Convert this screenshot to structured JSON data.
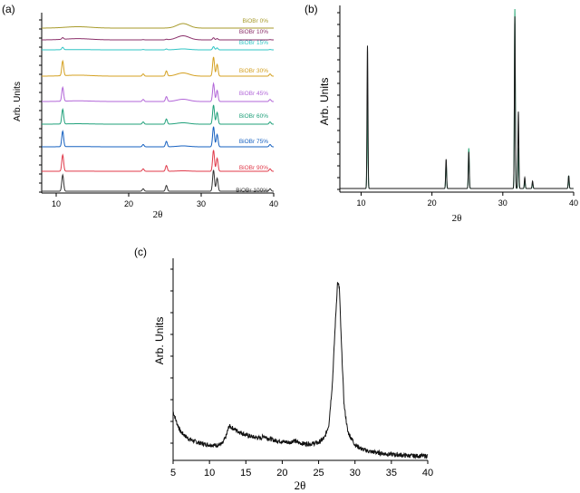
{
  "chart_data": [
    {
      "type": "line",
      "panel_label": "(a)",
      "xlabel": "2θ",
      "ylabel": "Arb. Units",
      "xlim": [
        8,
        40
      ],
      "xticks": [
        10,
        20,
        30,
        40
      ],
      "series": [
        {
          "name": "BiOBr 0%",
          "color": "#a79a2a",
          "bragg_scale": 0.0,
          "amorphous_scale": 1.0
        },
        {
          "name": "BiOBr 10%",
          "color": "#8a2f6a",
          "bragg_scale": 0.1,
          "amorphous_scale": 0.9
        },
        {
          "name": "BiOBr 15%",
          "color": "#2fc4c4",
          "bragg_scale": 0.15,
          "amorphous_scale": 0.2
        },
        {
          "name": "BiOBr 30%",
          "color": "#d4a020",
          "bragg_scale": 0.9,
          "amorphous_scale": 0.7
        },
        {
          "name": "BiOBr 45%",
          "color": "#b266d8",
          "bragg_scale": 0.85,
          "amorphous_scale": 0.5
        },
        {
          "name": "BiOBr 60%",
          "color": "#1fa07a",
          "bragg_scale": 0.9,
          "amorphous_scale": 0.3
        },
        {
          "name": "BiOBr 75%",
          "color": "#1560c0",
          "bragg_scale": 0.95,
          "amorphous_scale": 0.2
        },
        {
          "name": "BiOBr 90%",
          "color": "#e03a4a",
          "bragg_scale": 1.0,
          "amorphous_scale": 0.1
        },
        {
          "name": "BiOBr 100%",
          "color": "#333333",
          "bragg_scale": 1.0,
          "amorphous_scale": 0.0
        }
      ]
    },
    {
      "type": "line",
      "panel_label": "(b)",
      "xlabel": "2θ",
      "ylabel": "Arb. Units",
      "xlim": [
        7,
        40
      ],
      "xticks": [
        10,
        20,
        30,
        40
      ],
      "peaks": [
        {
          "x": 10.9,
          "measured": 0.78,
          "reference": 0.48
        },
        {
          "x": 22.0,
          "measured": 0.16,
          "reference": 0.14
        },
        {
          "x": 25.2,
          "measured": 0.2,
          "reference": 0.22
        },
        {
          "x": 31.7,
          "measured": 0.94,
          "reference": 0.98
        },
        {
          "x": 32.2,
          "measured": 0.42,
          "reference": 0.22
        },
        {
          "x": 33.1,
          "measured": 0.06,
          "reference": 0.04
        },
        {
          "x": 34.2,
          "measured": 0.04,
          "reference": 0.03
        },
        {
          "x": 39.3,
          "measured": 0.07,
          "reference": 0.07
        }
      ],
      "series_colors": {
        "measured": "#1a1a1a",
        "reference": "#2aa876"
      }
    },
    {
      "type": "line",
      "panel_label": "(c)",
      "xlabel": "2θ",
      "ylabel": "Arb. Units",
      "xlim": [
        5,
        40
      ],
      "xticks": [
        5,
        10,
        15,
        20,
        25,
        30,
        35,
        40
      ],
      "xticklabels": [
        "5",
        "10",
        "15",
        "20",
        "25",
        "30",
        "35",
        "40"
      ],
      "points": [
        [
          5.0,
          0.22
        ],
        [
          5.5,
          0.17
        ],
        [
          6.0,
          0.13
        ],
        [
          7.0,
          0.1
        ],
        [
          8.0,
          0.085
        ],
        [
          9.0,
          0.075
        ],
        [
          10.0,
          0.07
        ],
        [
          11.0,
          0.068
        ],
        [
          11.8,
          0.075
        ],
        [
          12.3,
          0.11
        ],
        [
          12.7,
          0.155
        ],
        [
          13.2,
          0.145
        ],
        [
          14.0,
          0.13
        ],
        [
          15.0,
          0.115
        ],
        [
          16.0,
          0.105
        ],
        [
          17.0,
          0.1
        ],
        [
          17.5,
          0.11
        ],
        [
          18.0,
          0.1
        ],
        [
          19.0,
          0.09
        ],
        [
          20.0,
          0.085
        ],
        [
          21.0,
          0.08
        ],
        [
          21.6,
          0.09
        ],
        [
          22.2,
          0.08
        ],
        [
          23.0,
          0.075
        ],
        [
          24.0,
          0.075
        ],
        [
          25.0,
          0.08
        ],
        [
          25.8,
          0.1
        ],
        [
          26.4,
          0.16
        ],
        [
          26.9,
          0.35
        ],
        [
          27.3,
          0.62
        ],
        [
          27.6,
          0.8
        ],
        [
          27.85,
          0.78
        ],
        [
          28.1,
          0.55
        ],
        [
          28.5,
          0.25
        ],
        [
          29.0,
          0.13
        ],
        [
          30.0,
          0.07
        ],
        [
          31.0,
          0.05
        ],
        [
          32.0,
          0.04
        ],
        [
          33.0,
          0.035
        ],
        [
          34.0,
          0.03
        ],
        [
          35.0,
          0.027
        ],
        [
          36.0,
          0.025
        ],
        [
          37.0,
          0.022
        ],
        [
          38.0,
          0.02
        ],
        [
          39.0,
          0.02
        ],
        [
          40.0,
          0.02
        ]
      ],
      "series_color": "#111111"
    }
  ]
}
